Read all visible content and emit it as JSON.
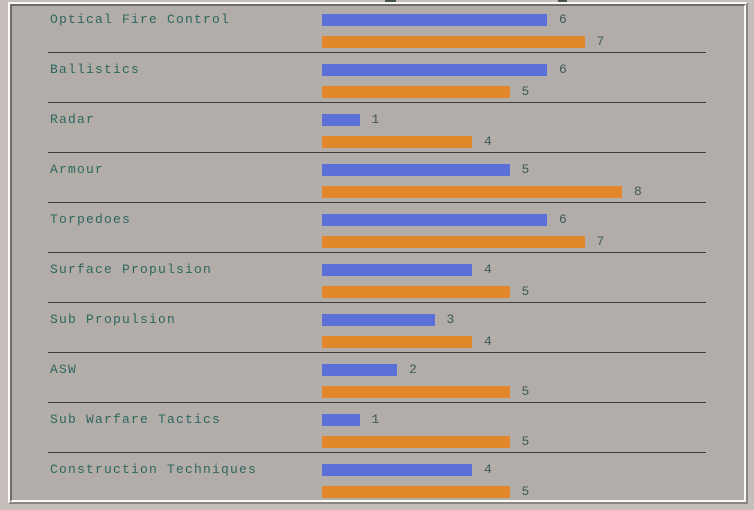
{
  "window": {
    "outer_background": "#c6beba",
    "panel_background": "#b2ada8",
    "separator_color": "#3e3c3a",
    "label_color": "#2d665f"
  },
  "chart_data": {
    "type": "bar",
    "orientation": "horizontal",
    "title": "",
    "xlabel": "",
    "ylabel": "",
    "grid": false,
    "legend_shown": false,
    "value_labels_shown": true,
    "xlim": [
      0,
      8
    ],
    "categories": [
      "Optical Fire Control",
      "Ballistics",
      "Radar",
      "Armour",
      "Torpedoes",
      "Surface Propulsion",
      "Sub Propulsion",
      "ASW",
      "Sub Warfare Tactics",
      "Construction Techniques"
    ],
    "series": [
      {
        "name": "blue-series",
        "color": "#5a70d8",
        "values": [
          6,
          6,
          1,
          5,
          6,
          4,
          3,
          2,
          1,
          4
        ]
      },
      {
        "name": "orange-series",
        "color": "#e0882a",
        "values": [
          7,
          5,
          4,
          8,
          7,
          5,
          4,
          5,
          5,
          5
        ]
      }
    ]
  }
}
